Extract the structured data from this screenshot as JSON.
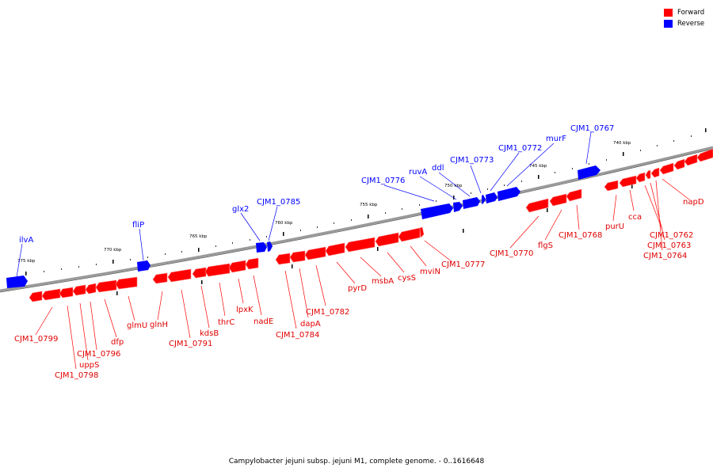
{
  "caption": "Campylobacter jejuni subsp. jejuni M1, complete genome. - 0..1616648",
  "legend": {
    "forward_label": "Forward",
    "reverse_label": "Reverse",
    "forward_color": "#ff0000",
    "reverse_color": "#0000ff"
  },
  "colors": {
    "forward": "#ff0000",
    "reverse": "#0000ff",
    "backbone": "#999999"
  },
  "ticks": [
    {
      "label": "775 kbp"
    },
    {
      "label": "770 kbp"
    },
    {
      "label": "765 kbp"
    },
    {
      "label": "760 kbp"
    },
    {
      "label": "755 kbp"
    },
    {
      "label": "750 kbp"
    },
    {
      "label": "745 kbp"
    },
    {
      "label": "740 kbp"
    }
  ],
  "genes": {
    "reverse": [
      "ilvA",
      "fliP",
      "glx2",
      "CJM1_0785",
      "CJM1_0776",
      "ruvA",
      "ddl",
      "CJM1_0773",
      "CJM1_0772",
      "murF",
      "CJM1_0767"
    ],
    "forward": [
      "CJM1_0799",
      "CJM1_0798",
      "uppS",
      "CJM1_0796",
      "dfp",
      "glmU",
      "glnH",
      "CJM1_0791",
      "kdsB",
      "thrC",
      "lpxK",
      "nadE",
      "dapA",
      "CJM1_0784",
      "CJM1_0782",
      "pyrD",
      "msbA",
      "cysS",
      "mviN",
      "CJM1_0777",
      "CJM1_0770",
      "flgS",
      "CJM1_0768",
      "purU",
      "cca",
      "CJM1_0762",
      "CJM1_0763",
      "CJM1_0764",
      "napD"
    ]
  }
}
